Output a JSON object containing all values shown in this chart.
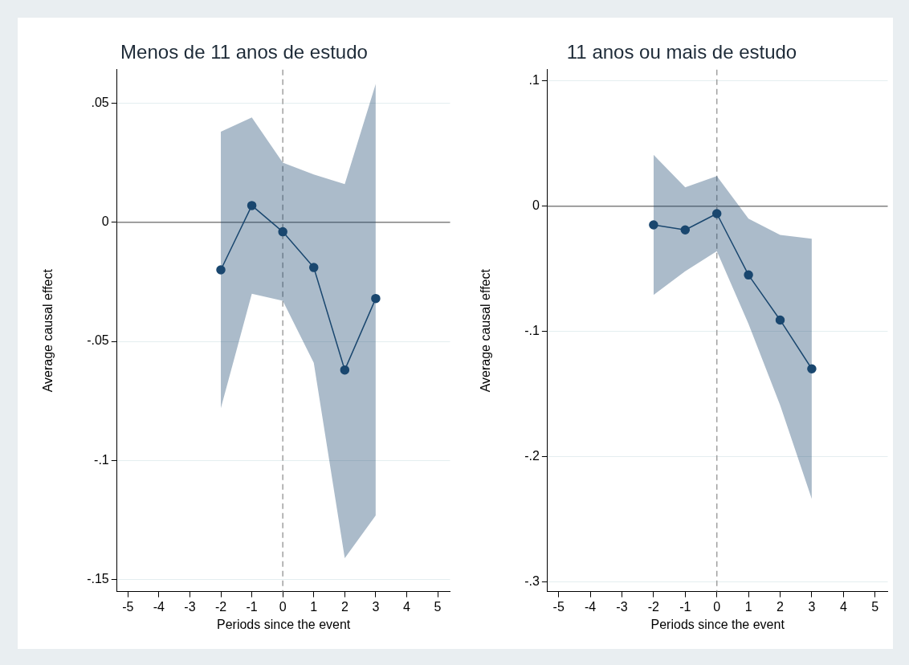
{
  "chart_data": [
    {
      "type": "line",
      "title": "Menos de 11 anos de estudo",
      "xlabel": "Periods since the event",
      "ylabel": "Average causal effect",
      "x": [
        -2,
        -1,
        0,
        1,
        2,
        3
      ],
      "series": [
        {
          "color": "#1a476f",
          "values": [
            -0.02,
            0.007,
            -0.004,
            -0.019,
            -0.062,
            -0.032
          ],
          "lower": [
            -0.078,
            -0.03,
            -0.033,
            -0.059,
            -0.141,
            -0.123
          ],
          "upper": [
            0.038,
            0.044,
            0.025,
            0.02,
            0.016,
            0.058
          ]
        }
      ],
      "xlim": [
        -5.35,
        5.4
      ],
      "xticks": [
        -5,
        -4,
        -3,
        -2,
        -1,
        0,
        1,
        2,
        3,
        4,
        5
      ],
      "ylim": [
        -0.155,
        0.064
      ],
      "yticks": [
        {
          "value": 0.05,
          "label": ".05"
        },
        0,
        {
          "value": -0.05,
          "label": "-.05"
        },
        {
          "value": -0.1,
          "label": "-.1"
        },
        {
          "value": -0.15,
          "label": "-.15"
        }
      ],
      "ref_lines": [
        {
          "axis": "y",
          "value": 0,
          "color": "#808080"
        },
        {
          "axis": "x",
          "value": 0,
          "color": "#a0a0a0",
          "line_style": "dashed"
        }
      ],
      "grid": "y",
      "marker": "circle",
      "line_style": "solid",
      "legend": false
    },
    {
      "type": "line",
      "title": "11 anos ou mais de estudo",
      "xlabel": "Periods since the event",
      "ylabel": "Average causal effect",
      "x": [
        -2,
        -1,
        0,
        1,
        2,
        3
      ],
      "series": [
        {
          "color": "#1a476f",
          "values": [
            -0.015,
            -0.019,
            -0.006,
            -0.055,
            -0.091,
            -0.13
          ],
          "lower": [
            -0.071,
            -0.052,
            -0.036,
            -0.094,
            -0.159,
            -0.234
          ],
          "upper": [
            0.041,
            0.015,
            0.024,
            -0.01,
            -0.023,
            -0.026
          ]
        }
      ],
      "xlim": [
        -5.35,
        5.4
      ],
      "xticks": [
        -5,
        -4,
        -3,
        -2,
        -1,
        0,
        1,
        2,
        3,
        4,
        5
      ],
      "ylim": [
        -0.308,
        0.109
      ],
      "yticks": [
        {
          "value": 0.1,
          "label": ".1"
        },
        0,
        {
          "value": -0.1,
          "label": "-.1"
        },
        {
          "value": -0.2,
          "label": "-.2"
        },
        {
          "value": -0.3,
          "label": "-.3"
        }
      ],
      "ref_lines": [
        {
          "axis": "y",
          "value": 0,
          "color": "#808080"
        },
        {
          "axis": "x",
          "value": 0,
          "color": "#a0a0a0",
          "line_style": "dashed"
        }
      ],
      "grid": "y",
      "marker": "circle",
      "line_style": "solid",
      "legend": false
    }
  ]
}
